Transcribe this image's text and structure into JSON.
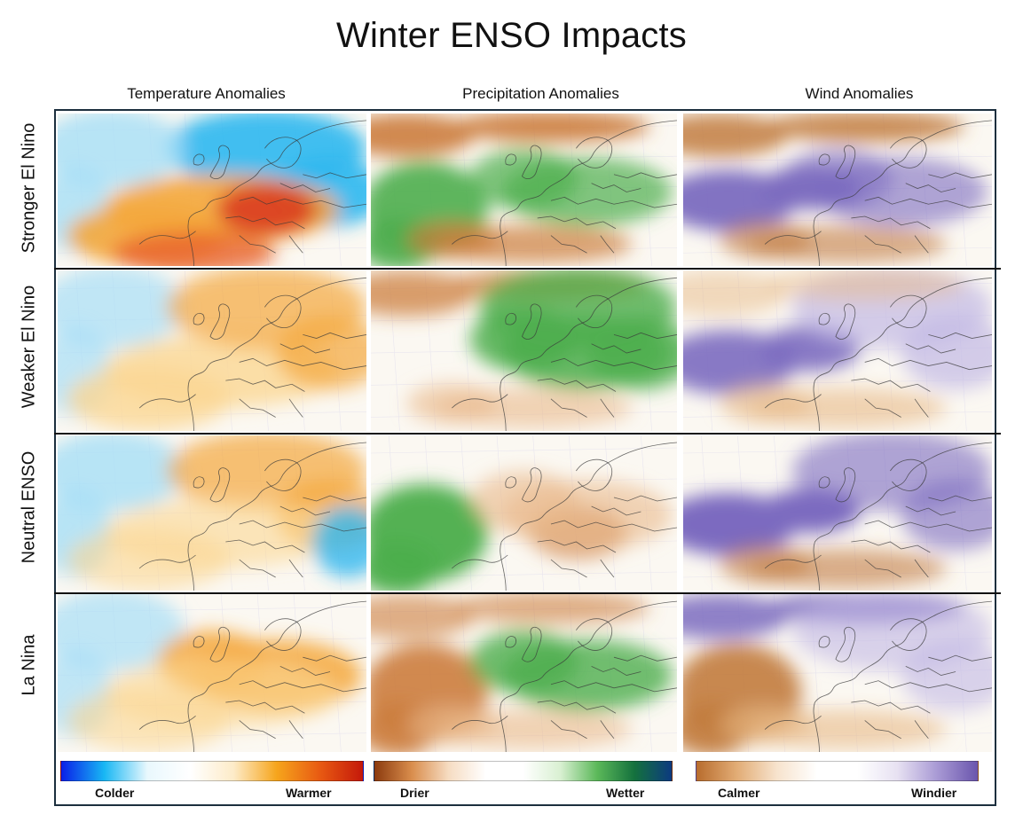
{
  "title": "Winter ENSO Impacts",
  "columns": [
    {
      "key": "temperature",
      "label": "Temperature Anomalies"
    },
    {
      "key": "precipitation",
      "label": "Precipitation Anomalies"
    },
    {
      "key": "wind",
      "label": "Wind Anomalies"
    }
  ],
  "rows": [
    {
      "key": "strong_el_nino",
      "label": "Stronger El Nino"
    },
    {
      "key": "weak_el_nino",
      "label": "Weaker El Nino"
    },
    {
      "key": "neutral",
      "label": "Neutral ENSO"
    },
    {
      "key": "la_nina",
      "label": "La Nina"
    }
  ],
  "legends": [
    {
      "low": "Colder",
      "high": "Warmer",
      "colors": [
        "#0a1fe8",
        "#18b7f4",
        "#e9f8fd",
        "#ffffff",
        "#fdebc8",
        "#f6a51c",
        "#e85a12",
        "#c4180a"
      ]
    },
    {
      "low": "Drier",
      "high": "Wetter",
      "colors": [
        "#8b3a0e",
        "#d98d4c",
        "#f6dcc2",
        "#ffffff",
        "#ffffff",
        "#d9f0d2",
        "#5bb859",
        "#14713d",
        "#0c3a80"
      ]
    },
    {
      "low": "Calmer",
      "high": "Windier",
      "colors": [
        "#b86c2d",
        "#e2ac75",
        "#f7e3cd",
        "#ffffff",
        "#ffffff",
        "#e7e1f2",
        "#a899d4",
        "#6a55ad"
      ]
    }
  ],
  "colors": {
    "frame_border": "#1c2f3e",
    "row_divider": "#111111",
    "cold": "#2fb8f0",
    "cold_light": "#a6def6",
    "warm_light": "#fbd793",
    "warm": "#f4a73b",
    "warm_strong": "#e8612a",
    "hot": "#d9361d",
    "dry": "#cc7d3d",
    "dry_light": "#eab98a",
    "wet": "#4cae4c",
    "wet_light": "#a5d79c",
    "calm": "#c27c3f",
    "calm_light": "#e8b985",
    "windy": "#7b6bc0",
    "windy_light": "#c2b8e4",
    "coast": "#3a3a3a"
  },
  "map_panels": [
    {
      "row": "strong_el_nino",
      "column": "temperature",
      "description": "Warm anomalies across central and southern Europe, strongest over the Balkans; cold anomalies over Scandinavia and the North Atlantic.",
      "anomalies": [
        {
          "color": "cold",
          "strength": 0.9,
          "region": "scandinavia-northeast"
        },
        {
          "color": "cold_light",
          "strength": 0.8,
          "region": "north-atlantic"
        },
        {
          "color": "warm",
          "strength": 0.9,
          "region": "central-south-europe"
        },
        {
          "color": "hot",
          "strength": 0.85,
          "region": "balkans"
        },
        {
          "color": "warm_strong",
          "strength": 0.8,
          "region": "north-africa"
        }
      ]
    },
    {
      "row": "strong_el_nino",
      "column": "precipitation",
      "description": "Wet over the Atlantic off Iberia and across central-eastern Europe; dry over Iceland, the northwest and the Mediterranean.",
      "anomalies": [
        {
          "color": "dry",
          "strength": 0.9,
          "region": "iceland-north"
        },
        {
          "color": "wet",
          "strength": 0.9,
          "region": "atlantic-iberia"
        },
        {
          "color": "wet",
          "strength": 0.7,
          "region": "central-east-europe"
        },
        {
          "color": "dry",
          "strength": 0.7,
          "region": "mediterranean"
        }
      ]
    },
    {
      "row": "strong_el_nino",
      "column": "wind",
      "description": "Windier over the Atlantic and western Europe; calmer over the north and south.",
      "anomalies": [
        {
          "color": "calm",
          "strength": 0.85,
          "region": "iceland-north"
        },
        {
          "color": "windy",
          "strength": 0.95,
          "region": "atlantic-west"
        },
        {
          "color": "windy",
          "strength": 0.6,
          "region": "central-east-europe"
        },
        {
          "color": "calm",
          "strength": 0.6,
          "region": "mediterranean"
        }
      ]
    },
    {
      "row": "weak_el_nino",
      "column": "temperature",
      "description": "Mild warming across central and eastern Europe; slightly cold over the western Atlantic.",
      "anomalies": [
        {
          "color": "cold_light",
          "strength": 0.7,
          "region": "north-atlantic"
        },
        {
          "color": "warm_light",
          "strength": 0.8,
          "region": "central-south-europe"
        },
        {
          "color": "warm",
          "strength": 0.7,
          "region": "scandinavia-northeast"
        }
      ]
    },
    {
      "row": "weak_el_nino",
      "column": "precipitation",
      "description": "Wet over the British Isles, Scandinavia and central Europe; dry over Iceland and parts of the Mediterranean.",
      "anomalies": [
        {
          "color": "dry",
          "strength": 0.75,
          "region": "iceland-north"
        },
        {
          "color": "wet",
          "strength": 0.85,
          "region": "central-east-europe"
        },
        {
          "color": "wet",
          "strength": 0.8,
          "region": "scandinavia-northeast"
        },
        {
          "color": "dry_light",
          "strength": 0.6,
          "region": "mediterranean"
        }
      ]
    },
    {
      "row": "weak_el_nino",
      "column": "wind",
      "description": "Windier over the Atlantic and northern Europe; scattered calmer areas.",
      "anomalies": [
        {
          "color": "windy",
          "strength": 0.9,
          "region": "atlantic-west"
        },
        {
          "color": "windy_light",
          "strength": 0.7,
          "region": "scandinavia-northeast"
        },
        {
          "color": "calm_light",
          "strength": 0.6,
          "region": "mediterranean"
        },
        {
          "color": "calm_light",
          "strength": 0.5,
          "region": "iceland-north"
        }
      ]
    },
    {
      "row": "neutral",
      "column": "temperature",
      "description": "Warm over Scandinavia and central Europe; cold over the Atlantic and the eastern Mediterranean.",
      "anomalies": [
        {
          "color": "cold_light",
          "strength": 0.8,
          "region": "north-atlantic"
        },
        {
          "color": "warm",
          "strength": 0.7,
          "region": "scandinavia-northeast"
        },
        {
          "color": "warm_light",
          "strength": 0.6,
          "region": "central-south-europe"
        },
        {
          "color": "cold",
          "strength": 0.8,
          "region": "east-mediterranean"
        }
      ]
    },
    {
      "row": "neutral",
      "column": "precipitation",
      "description": "Very wet over the Atlantic west of Iberia; drier over eastern Europe and the Balkans.",
      "anomalies": [
        {
          "color": "wet",
          "strength": 0.95,
          "region": "atlantic-iberia"
        },
        {
          "color": "dry",
          "strength": 0.65,
          "region": "balkans"
        },
        {
          "color": "dry_light",
          "strength": 0.6,
          "region": "central-east-europe"
        }
      ]
    },
    {
      "row": "neutral",
      "column": "wind",
      "description": "Strong windy anomaly over the Atlantic extending into western Europe; calmer in the south.",
      "anomalies": [
        {
          "color": "windy",
          "strength": 1.0,
          "region": "atlantic-west"
        },
        {
          "color": "windy",
          "strength": 0.6,
          "region": "scandinavia-northeast"
        },
        {
          "color": "calm",
          "strength": 0.6,
          "region": "mediterranean"
        }
      ]
    },
    {
      "row": "la_nina",
      "column": "temperature",
      "description": "Warm anomalies over central and eastern Europe; cooler over the Atlantic.",
      "anomalies": [
        {
          "color": "cold_light",
          "strength": 0.7,
          "region": "north-atlantic"
        },
        {
          "color": "warm",
          "strength": 0.85,
          "region": "central-east-europe"
        },
        {
          "color": "warm_light",
          "strength": 0.6,
          "region": "central-south-europe"
        }
      ]
    },
    {
      "row": "la_nina",
      "column": "precipitation",
      "description": "Dry over the Atlantic, Iberia and the Mediterranean; wet over eastern Europe.",
      "anomalies": [
        {
          "color": "dry",
          "strength": 0.9,
          "region": "atlantic-iberia"
        },
        {
          "color": "dry",
          "strength": 0.6,
          "region": "iceland-north"
        },
        {
          "color": "wet",
          "strength": 0.8,
          "region": "central-east-europe"
        },
        {
          "color": "dry_light",
          "strength": 0.6,
          "region": "mediterranean"
        }
      ]
    },
    {
      "row": "la_nina",
      "column": "wind",
      "description": "Windier in the north; calmer over the Atlantic and southern Europe.",
      "anomalies": [
        {
          "color": "windy",
          "strength": 0.85,
          "region": "iceland-north"
        },
        {
          "color": "calm",
          "strength": 0.9,
          "region": "atlantic-iberia"
        },
        {
          "color": "windy_light",
          "strength": 0.6,
          "region": "scandinavia-northeast"
        },
        {
          "color": "calm_light",
          "strength": 0.6,
          "region": "mediterranean"
        }
      ]
    }
  ]
}
